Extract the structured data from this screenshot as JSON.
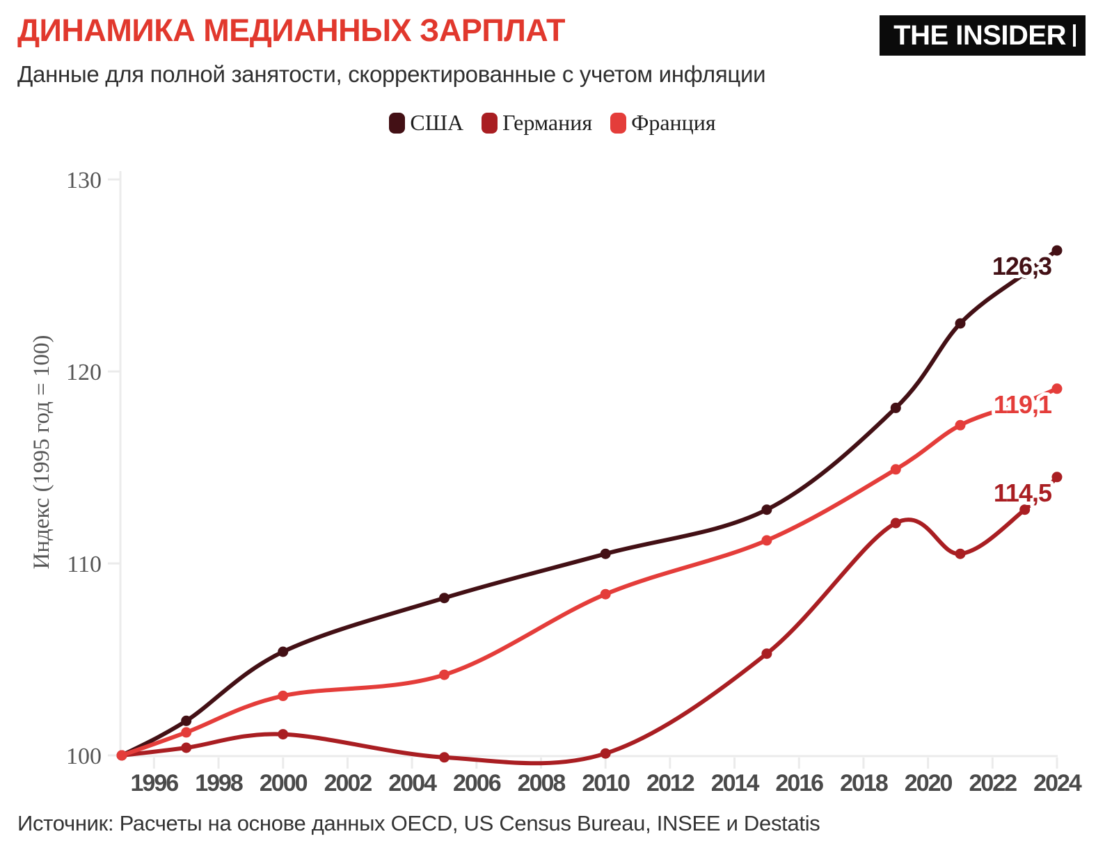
{
  "header": {
    "title": "ДИНАМИКА МЕДИАННЫХ ЗАРПЛАТ",
    "subtitle": "Данные для полной занятости, скорректированные с учетом инфляции",
    "logo": "THE INSIDER"
  },
  "footer": {
    "source": "Источник: Расчеты на основе данных OECD, US Census Bureau, INSEE и Destatis"
  },
  "colors": {
    "accent_red": "#e1382d",
    "axis_gray": "#ebebeb",
    "y_tick_text": "#555555",
    "x_tick_text": "#4a4a4a",
    "body_text": "#2f2f2f"
  },
  "chart_data": {
    "type": "line",
    "title": "ДИНАМИКА МЕДИАННЫХ ЗАРПЛАТ",
    "subtitle": "Данные для полной занятости, скорректированные с учетом инфляции",
    "xlabel": "",
    "ylabel": "Индекс (1995 год = 100)",
    "xlim": [
      1995,
      2024
    ],
    "ylim": [
      100,
      130
    ],
    "yticks": [
      100,
      110,
      120,
      130
    ],
    "xticks": [
      1996,
      1998,
      2000,
      2002,
      2004,
      2006,
      2008,
      2010,
      2012,
      2014,
      2016,
      2018,
      2020,
      2022,
      2024
    ],
    "grid": "off",
    "legend_position": "top-center",
    "x": [
      1995,
      1997,
      2000,
      2005,
      2010,
      2015,
      2019,
      2021,
      2023,
      2024
    ],
    "series": [
      {
        "key": "usa",
        "name": "США",
        "color": "#431015",
        "values": [
          100,
          101.8,
          105.4,
          108.2,
          110.5,
          112.8,
          118.1,
          122.5,
          125.1,
          126.3
        ],
        "end_label": "126,3"
      },
      {
        "key": "germany",
        "name": "Германия",
        "color": "#a91e22",
        "values": [
          100,
          100.4,
          101.1,
          99.9,
          100.1,
          105.3,
          112.1,
          110.5,
          112.8,
          114.5
        ],
        "end_label": "114,5"
      },
      {
        "key": "france",
        "name": "Франция",
        "color": "#e43d3a",
        "values": [
          100,
          101.2,
          103.1,
          104.2,
          108.4,
          111.2,
          114.9,
          117.2,
          118.4,
          119.1
        ],
        "end_label": "119,1"
      }
    ]
  }
}
